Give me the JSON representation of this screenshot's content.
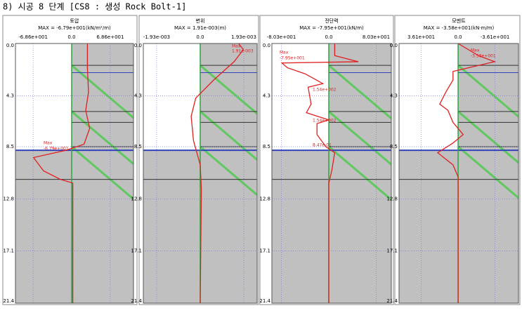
{
  "title": "8) 시공 8 단계 [CS8 : 생성 Rock Bolt-1]",
  "depth_lim": [
    0,
    21.4
  ],
  "yticks": [
    {
      "value": 0,
      "label": "0.0"
    },
    4.3,
    8.5,
    12.8,
    17.1,
    21.4
  ],
  "panels": [
    {
      "title": "토압",
      "max_label": "MAX = -6.79e+001(kN/m²/m)",
      "xlim": [
        -100,
        110
      ],
      "xticks": [
        {
          "value": -68.6,
          "label": "-6.86e+001"
        },
        {
          "value": 0,
          "label": "0.0"
        },
        {
          "value": 68.6,
          "label": "6.86e+001"
        }
      ],
      "annotations": [
        "Max",
        "-6.79e+001"
      ],
      "profile": {
        "depth": [
          0,
          2,
          4,
          5.5,
          7,
          8.3,
          8.8,
          9.4,
          10.5,
          11.2,
          11.5,
          21.4
        ],
        "values": [
          28,
          28,
          30,
          25,
          32,
          22,
          -10,
          -67.9,
          -50,
          -20,
          2,
          2
        ]
      }
    },
    {
      "title": "변위",
      "max_label": "MAX = 1.91e-003(m)",
      "xlim": [
        -0.00252,
        0.00252
      ],
      "xticks": [
        {
          "value": -0.00193,
          "label": "-1.93e-003"
        },
        {
          "value": 0,
          "label": "0.0"
        },
        {
          "value": 0.00193,
          "label": "1.93e-003"
        }
      ],
      "annotations": [
        "Max",
        "1.91e-003"
      ],
      "profile": {
        "depth": [
          0,
          0.5,
          1.5,
          3,
          4.5,
          6,
          8,
          10,
          12,
          21.4
        ],
        "values": [
          0.0017,
          0.00191,
          0.0015,
          0.0006,
          -0.0002,
          -0.0004,
          -0.0003,
          0,
          5e-05,
          0
        ]
      }
    },
    {
      "title": "전단력",
      "max_label": "MAX = -7.95e+001(kN/m)",
      "xlim": [
        -96.4,
        105.9
      ],
      "xticks": [
        {
          "value": -80.3,
          "label": "-8.03e+001"
        },
        {
          "value": 0,
          "label": "0.0"
        },
        {
          "value": 80.3,
          "label": "8.03e+001"
        }
      ],
      "annotations": [
        "Max",
        "-7.95e+001",
        "1.54e+002",
        "1.54e+002",
        "8.47e-01"
      ],
      "profile": {
        "depth": [
          0,
          1,
          1.5,
          1.6,
          2.0,
          2.5,
          3.3,
          3.6,
          5,
          5.7,
          6.3,
          6.6,
          7.5,
          8.5,
          9,
          10.5,
          11.5,
          21.4
        ],
        "values": [
          10,
          10,
          50,
          -79.5,
          -70,
          -40,
          -10,
          -35,
          -30,
          -38,
          0,
          -20,
          -20,
          -5,
          10,
          5,
          0,
          0
        ]
      }
    },
    {
      "title": "모멘트",
      "max_label": "MAX = -3.58e+001(kN·m/m)",
      "xlim": [
        57.8,
        -59.1
      ],
      "xticks": [
        {
          "value": 36.1,
          "label": "3.61e+001"
        },
        {
          "value": 0,
          "label": "0.0"
        },
        {
          "value": -36.1,
          "label": "-3.61e+001"
        }
      ],
      "annotations": [
        "Max",
        "-3.58e+001"
      ],
      "profile": {
        "depth": [
          0,
          1,
          1.5,
          2,
          2.3,
          3,
          4,
          5,
          5.5,
          6.5,
          7.5,
          8.2,
          9,
          10,
          11,
          21.4
        ],
        "values": [
          0,
          -20,
          -35.8,
          -10,
          5,
          5,
          12,
          18,
          10,
          5,
          -5,
          5,
          20,
          5,
          0,
          0
        ]
      }
    }
  ]
}
